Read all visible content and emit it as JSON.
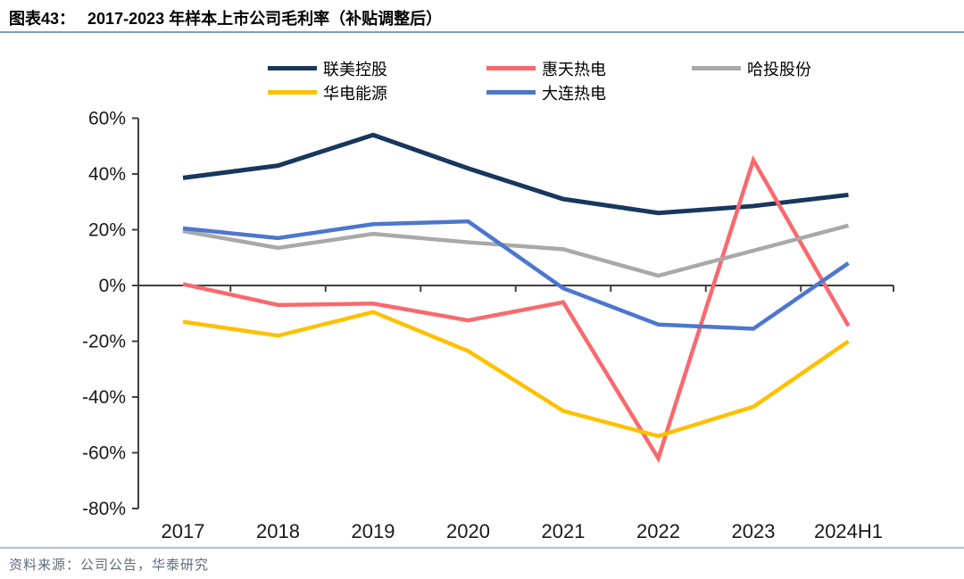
{
  "header": {
    "fig_label": "图表43：",
    "title": "2017-2023 年样本上市公司毛利率（补贴调整后）"
  },
  "source": "资料来源：公司公告，华泰研究",
  "colors": {
    "header_rule": "#7f9dc0",
    "footer_rule": "#a9c3db",
    "axis": "#404040",
    "tick_text": "#1a1a1a",
    "source_text": "#5c6c7c"
  },
  "chart_data": {
    "type": "line",
    "title": "2017-2023 年样本上市公司毛利率（补贴调整后）",
    "categories": [
      "2017",
      "2018",
      "2019",
      "2020",
      "2021",
      "2022",
      "2023",
      "2024H1"
    ],
    "series": [
      {
        "name": "联美控股",
        "color": "#17375e",
        "values": [
          38.6,
          43,
          54,
          42,
          31,
          26,
          28.5,
          32.5
        ]
      },
      {
        "name": "惠天热电",
        "color": "#f9696e",
        "values": [
          0.5,
          -7,
          -6.5,
          -12.5,
          -6,
          -62,
          45,
          -14.5
        ]
      },
      {
        "name": "哈投股份",
        "color": "#a9a9a9",
        "values": [
          19.5,
          13.5,
          18.5,
          15.5,
          13,
          3.5,
          12.5,
          21.5
        ]
      },
      {
        "name": "华电能源",
        "color": "#ffc000",
        "values": [
          -13,
          -18,
          -9.5,
          -23.5,
          -45,
          -54,
          -43.5,
          -20
        ]
      },
      {
        "name": "大连热电",
        "color": "#4d76ce",
        "values": [
          20.5,
          17,
          22,
          23,
          -1,
          -14,
          -15.5,
          8
        ]
      }
    ],
    "ylim": [
      -80,
      60
    ],
    "ytick_step": 20,
    "ytick_labels": [
      "60%",
      "40%",
      "20%",
      "0%",
      "-20%",
      "-40%",
      "-60%",
      "-80%"
    ],
    "ylabel": "",
    "xlabel": "",
    "grid": false,
    "legend_position": "top"
  }
}
